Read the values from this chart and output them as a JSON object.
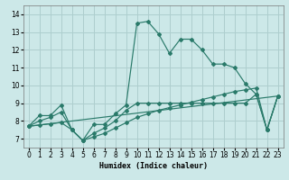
{
  "bg_color": "#cce8e8",
  "grid_color": "#aecece",
  "line_color": "#2a7a6a",
  "xlim": [
    -0.5,
    23.5
  ],
  "ylim": [
    6.5,
    14.5
  ],
  "xticks": [
    0,
    1,
    2,
    3,
    4,
    5,
    6,
    7,
    8,
    9,
    10,
    11,
    12,
    13,
    14,
    15,
    16,
    17,
    18,
    19,
    20,
    21,
    22,
    23
  ],
  "yticks": [
    7,
    8,
    9,
    10,
    11,
    12,
    13,
    14
  ],
  "xlabel": "Humidex (Indice chaleur)",
  "line1": {
    "x": [
      0,
      1,
      2,
      3,
      4,
      5,
      6,
      7,
      8,
      9,
      10,
      11,
      12,
      13,
      14,
      15,
      16,
      17,
      18,
      19,
      20,
      21,
      22,
      23
    ],
    "y": [
      7.7,
      8.3,
      8.3,
      8.9,
      7.5,
      6.9,
      7.8,
      7.8,
      8.4,
      8.9,
      13.5,
      13.6,
      12.9,
      11.8,
      12.6,
      12.6,
      12.0,
      11.2,
      11.2,
      11.0,
      10.1,
      9.5,
      7.5,
      9.4
    ]
  },
  "line2": {
    "x": [
      0,
      1,
      2,
      3,
      4,
      5,
      6,
      7,
      8,
      9,
      10,
      11,
      12,
      13,
      14,
      15,
      16,
      17,
      18,
      19,
      20,
      21,
      22,
      23
    ],
    "y": [
      7.7,
      8.0,
      8.2,
      8.5,
      7.5,
      6.9,
      7.3,
      7.6,
      8.0,
      8.6,
      9.0,
      9.0,
      9.0,
      9.0,
      9.0,
      9.0,
      9.0,
      9.0,
      9.0,
      9.0,
      9.0,
      9.5,
      7.5,
      9.4
    ]
  },
  "line3": {
    "x": [
      0,
      1,
      2,
      3,
      4,
      5,
      6,
      7,
      8,
      9,
      10,
      11,
      12,
      13,
      14,
      15,
      16,
      17,
      18,
      19,
      20,
      21,
      22,
      23
    ],
    "y": [
      7.7,
      7.77,
      7.84,
      7.91,
      7.5,
      6.9,
      7.1,
      7.3,
      7.6,
      7.9,
      8.2,
      8.4,
      8.6,
      8.75,
      8.9,
      9.05,
      9.2,
      9.35,
      9.5,
      9.65,
      9.75,
      9.85,
      7.5,
      9.4
    ]
  },
  "line4": {
    "x": [
      0,
      23
    ],
    "y": [
      7.7,
      9.4
    ]
  }
}
